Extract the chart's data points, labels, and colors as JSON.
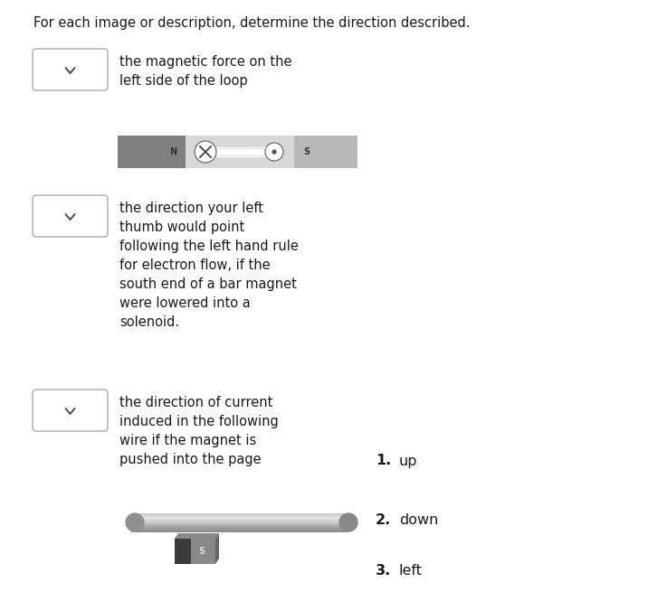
{
  "title": "For each image or description, determine the direction described.",
  "title_fontsize": 10.5,
  "background_color": "#ffffff",
  "items": [
    {
      "label": "the magnetic force on the\nleft side of the loop",
      "has_image": "magnet_loop"
    },
    {
      "label": "the direction your left\nthumb would point\nfollowing the left hand rule\nfor electron flow, if the\nsouth end of a bar magnet\nwere lowered into a\nsolenoid.",
      "has_image": null
    },
    {
      "label": "the direction of current\ninduced in the following\nwire if the magnet is\npushed into the page",
      "has_image": "wire_magnet"
    }
  ],
  "answers": [
    {
      "num": "1.",
      "text": "up"
    },
    {
      "num": "2.",
      "text": "down"
    },
    {
      "num": "3.",
      "text": "left"
    }
  ],
  "magnet_dark_color": "#808080",
  "magnet_light_color": "#b8b8b8",
  "magnet_mid_color": "#c8c8c8"
}
